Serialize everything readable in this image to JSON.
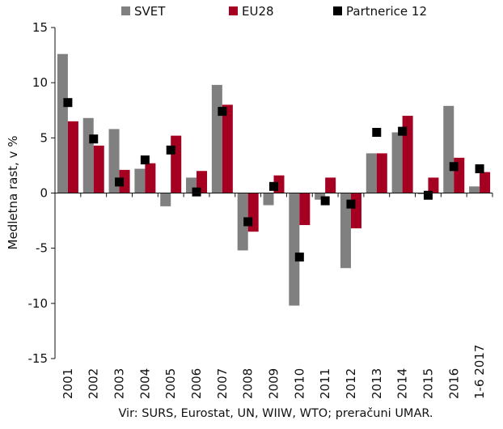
{
  "chart_data": {
    "type": "bar",
    "title": "",
    "xlabel": "",
    "ylabel": "Medletna rast, v %",
    "ylim": [
      -15,
      15
    ],
    "yticks": [
      15,
      10,
      5,
      0,
      -5,
      -10,
      -15
    ],
    "categories": [
      "2001",
      "2002",
      "2003",
      "2004",
      "2005",
      "2006",
      "2007",
      "2008",
      "2009",
      "2010",
      "2011",
      "2012",
      "2013",
      "2014",
      "2015",
      "2016",
      "1-6 2017"
    ],
    "series": [
      {
        "name": "SVET",
        "type": "bar",
        "color": "#808080",
        "values": [
          12.6,
          6.8,
          5.8,
          2.2,
          -1.2,
          1.4,
          9.8,
          -5.2,
          -1.1,
          -10.2,
          -0.6,
          -6.8,
          3.6,
          5.5,
          -0.1,
          7.9,
          0.6
        ]
      },
      {
        "name": "EU28",
        "type": "bar",
        "color": "#a50021",
        "values": [
          6.5,
          4.3,
          2.1,
          2.7,
          5.2,
          2.0,
          8.0,
          -3.5,
          1.6,
          -2.9,
          1.4,
          -3.2,
          3.6,
          7.0,
          1.4,
          3.2,
          1.9
        ]
      },
      {
        "name": "Partnerice 12",
        "type": "marker",
        "color": "#000000",
        "values": [
          8.2,
          4.9,
          1.0,
          3.0,
          3.9,
          0.1,
          7.4,
          -2.6,
          0.6,
          -5.8,
          -0.7,
          -1.0,
          5.5,
          5.6,
          -0.2,
          2.4,
          2.2
        ]
      }
    ],
    "grid": false,
    "legend_position": "top"
  },
  "source_note": "Vir: SURS, Eurostat, UN, WIIW, WTO; preračuni UMAR."
}
